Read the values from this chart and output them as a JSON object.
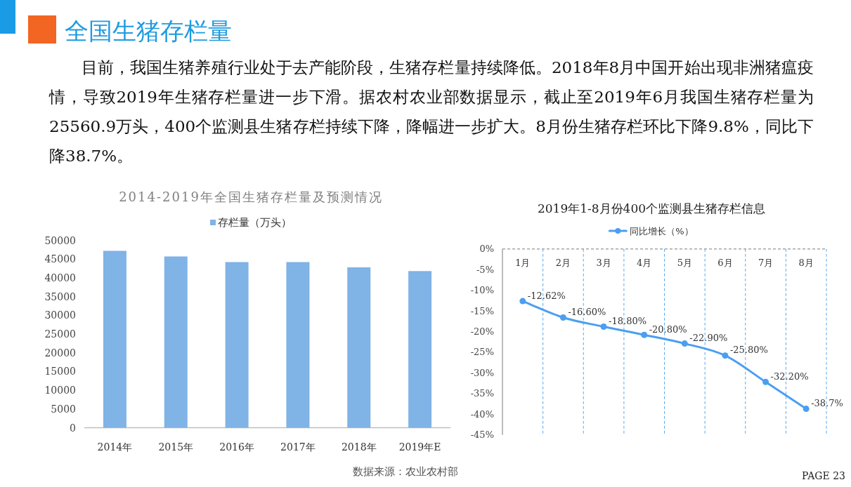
{
  "chart_data": [
    {
      "type": "other",
      "title": "全国生猪存栏量",
      "annotations": [
        "目前，我国生猪养殖行业处于去产能阶段，生猪存栏量持续降低。2018年8月中国开始出现非洲猪瘟疫情，导致2019年生猪存栏量进一步下滑。据农村农业部数据显示，截止至2019年6月我国生猪存栏量为25560.9万头，400个监测县生猪存栏持续下降，降幅进一步扩大。8月份生猪存栏环比下降9.8%，同比下降38.7%。",
        "数据来源：农业农村部",
        "PAGE 23"
      ]
    },
    {
      "type": "bar",
      "title": "2014-2019年全国生猪存栏量及预测情况",
      "categories": [
        "2014年",
        "2015年",
        "2016年",
        "2017年",
        "2018年",
        "2019年E"
      ],
      "series": [
        {
          "name": "存栏量（万头）",
          "color": "#80b3e6",
          "values": [
            47200,
            45700,
            44200,
            44200,
            42800,
            41800
          ]
        }
      ],
      "ylim": [
        0,
        50000
      ],
      "yticks": [
        0,
        5000,
        10000,
        15000,
        20000,
        25000,
        30000,
        35000,
        40000,
        45000,
        50000
      ],
      "legend": "top"
    },
    {
      "type": "line",
      "title": "2019年1-8月份400个监测县生猪存栏信息",
      "categories": [
        "1月",
        "2月",
        "3月",
        "4月",
        "5月",
        "6月",
        "7月",
        "8月"
      ],
      "series": [
        {
          "name": "同比增长（%）",
          "color": "#4a9ff0",
          "values": [
            -12.62,
            -16.6,
            -18.8,
            -20.8,
            -22.9,
            -25.8,
            -32.2,
            -38.7
          ],
          "value_labels": [
            "-12.62%",
            "-16.60%",
            "-18.80%",
            "-20.80%",
            "-22.90%",
            "-25.80%",
            "-32.20%",
            "-38.7%"
          ]
        }
      ],
      "ylim": [
        -45,
        0
      ],
      "yticks": [
        {
          "value": 0,
          "label": "0%"
        },
        {
          "value": -5,
          "label": "-5%"
        },
        {
          "value": -10,
          "label": "-10%"
        },
        {
          "value": -15,
          "label": "-15%"
        },
        {
          "value": -20,
          "label": "-20%"
        },
        {
          "value": -25,
          "label": "-25%"
        },
        {
          "value": -30,
          "label": "-30%"
        },
        {
          "value": -35,
          "label": "-35%"
        },
        {
          "value": -40,
          "label": "-40%"
        },
        {
          "value": -45,
          "label": "-45%"
        }
      ],
      "legend": "top",
      "grid": "x",
      "marker": "circle",
      "line_style": "solid"
    }
  ]
}
